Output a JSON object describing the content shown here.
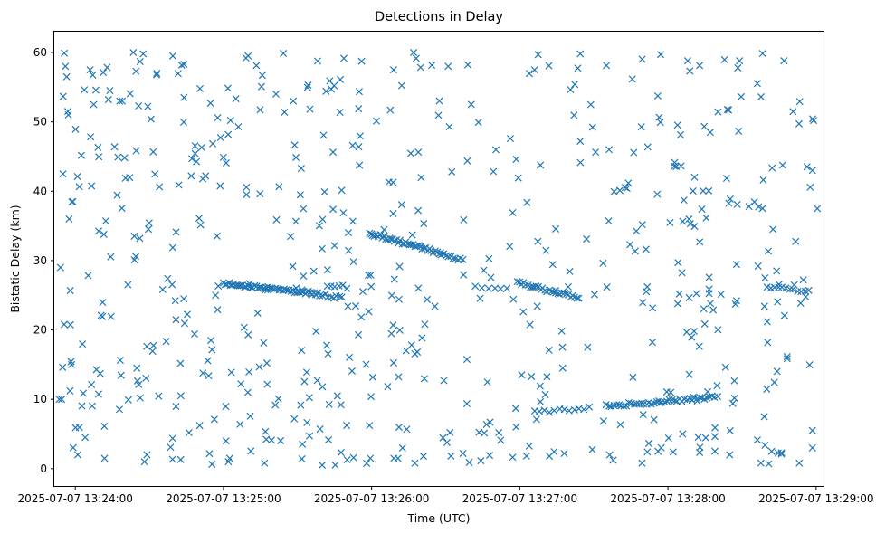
{
  "chart_data": {
    "type": "scatter",
    "title": "Detections in Delay",
    "xlabel": "Time (UTC)",
    "ylabel": "Bistatic Delay (km)",
    "marker": "x",
    "color": "#1f77b4",
    "x_unit": "seconds after 2025-07-07 13:23:00 UTC",
    "xlim": [
      51.5,
      363
    ],
    "ylim": [
      -2.5,
      63
    ],
    "x_ticks": [
      {
        "value": 60,
        "label": "2025-07-07 13:24:00"
      },
      {
        "value": 120,
        "label": "2025-07-07 13:25:00"
      },
      {
        "value": 180,
        "label": "2025-07-07 13:26:00"
      },
      {
        "value": 240,
        "label": "2025-07-07 13:27:00"
      },
      {
        "value": 300,
        "label": "2025-07-07 13:28:00"
      },
      {
        "value": 360,
        "label": "2025-07-07 13:29:00"
      }
    ],
    "y_ticks": [
      {
        "value": 0,
        "label": "0"
      },
      {
        "value": 10,
        "label": "10"
      },
      {
        "value": 20,
        "label": "20"
      },
      {
        "value": 30,
        "label": "30"
      },
      {
        "value": 40,
        "label": "40"
      },
      {
        "value": 50,
        "label": "50"
      },
      {
        "value": 60,
        "label": "60"
      }
    ],
    "tracks": [
      {
        "x_start": 120,
        "x_end": 158,
        "y_start": 26.7,
        "y_end": 25.2,
        "count": 55
      },
      {
        "x_start": 158,
        "x_end": 168,
        "y_start": 25.2,
        "y_end": 24.6,
        "count": 10
      },
      {
        "x_start": 179,
        "x_end": 208,
        "y_start": 34.0,
        "y_end": 31.0,
        "count": 40
      },
      {
        "x_start": 208,
        "x_end": 217,
        "y_start": 31.0,
        "y_end": 30.0,
        "count": 10
      },
      {
        "x_start": 239,
        "x_end": 264,
        "y_start": 26.8,
        "y_end": 24.6,
        "count": 30
      },
      {
        "x_start": 246,
        "x_end": 268,
        "y_start": 8.2,
        "y_end": 8.8,
        "count": 12
      },
      {
        "x_start": 275,
        "x_end": 320,
        "y_start": 9.0,
        "y_end": 10.4,
        "count": 45
      },
      {
        "x_start": 340,
        "x_end": 357,
        "y_start": 26.1,
        "y_end": 25.6,
        "count": 12
      },
      {
        "x_start": 162,
        "x_end": 170,
        "y_start": 26.5,
        "y_end": 26.2,
        "count": 6
      },
      {
        "x_start": 222,
        "x_end": 235,
        "y_start": 26.1,
        "y_end": 25.8,
        "count": 6
      }
    ],
    "scatter_clusters": [
      {
        "x": 53.5,
        "y": 10.0
      },
      {
        "x": 54.5,
        "y": 10.0
      },
      {
        "x": 55.0,
        "y": 42.5
      },
      {
        "x": 55.5,
        "y": 20.8
      },
      {
        "x": 56.0,
        "y": 58.0
      },
      {
        "x": 56.5,
        "y": 56.5
      },
      {
        "x": 57.0,
        "y": 51.5
      },
      {
        "x": 57.2,
        "y": 51.0
      },
      {
        "x": 54.0,
        "y": 29.0
      },
      {
        "x": 57.5,
        "y": 36.0
      },
      {
        "x": 58.5,
        "y": 15.0
      },
      {
        "x": 59.0,
        "y": 38.5
      },
      {
        "x": 61.0,
        "y": 2.0
      },
      {
        "x": 64.0,
        "y": 4.5
      },
      {
        "x": 66.0,
        "y": 57.5
      },
      {
        "x": 74.0,
        "y": 54.5
      },
      {
        "x": 78.0,
        "y": 53.0
      },
      {
        "x": 79.0,
        "y": 53.0
      },
      {
        "x": 83.5,
        "y": 60.0
      },
      {
        "x": 87.5,
        "y": 59.8
      },
      {
        "x": 93.0,
        "y": 57.0
      },
      {
        "x": 99.5,
        "y": 59.5
      },
      {
        "x": 130.0,
        "y": 59.5
      },
      {
        "x": 110.5,
        "y": 54.8
      },
      {
        "x": 211.0,
        "y": 58.0
      },
      {
        "x": 197.0,
        "y": 60.0
      },
      {
        "x": 246.0,
        "y": 57.5
      },
      {
        "x": 264.5,
        "y": 59.8
      },
      {
        "x": 308.0,
        "y": 58.8
      },
      {
        "x": 329.0,
        "y": 58.8
      },
      {
        "x": 347.0,
        "y": 58.8
      },
      {
        "x": 359.0,
        "y": 50.2
      },
      {
        "x": 360.5,
        "y": 37.5
      },
      {
        "x": 358.5,
        "y": 43.0
      },
      {
        "x": 358.5,
        "y": 3.0
      },
      {
        "x": 358.5,
        "y": 5.5
      },
      {
        "x": 88.0,
        "y": 1.0
      },
      {
        "x": 89.0,
        "y": 2.0
      },
      {
        "x": 122.0,
        "y": 1.0
      },
      {
        "x": 160.0,
        "y": 0.5
      },
      {
        "x": 179.5,
        "y": 1.5
      },
      {
        "x": 189.0,
        "y": 1.5
      },
      {
        "x": 201.0,
        "y": 1.8
      },
      {
        "x": 217.0,
        "y": 2.2
      },
      {
        "x": 231.5,
        "y": 5.2
      },
      {
        "x": 238.5,
        "y": 6.0
      },
      {
        "x": 252.0,
        "y": 1.8
      },
      {
        "x": 258.0,
        "y": 2.2
      },
      {
        "x": 289.5,
        "y": 0.8
      },
      {
        "x": 296.0,
        "y": 2.5
      },
      {
        "x": 325.0,
        "y": 2.0
      },
      {
        "x": 342.0,
        "y": 2.5
      },
      {
        "x": 346.0,
        "y": 2.3
      }
    ]
  }
}
